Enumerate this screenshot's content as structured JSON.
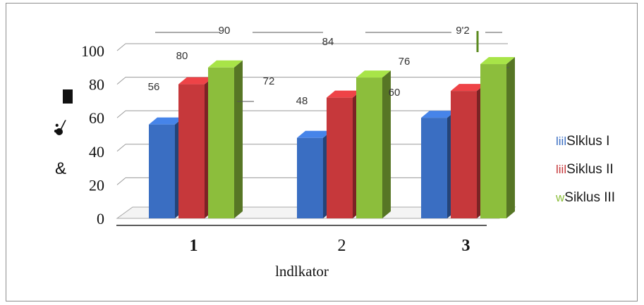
{
  "chart_data": {
    "type": "bar",
    "title": "",
    "xlabel": "lndlkator",
    "ylabel": "",
    "ylim": [
      0,
      100
    ],
    "y_ticks": [
      "0",
      "20",
      "40",
      "60",
      "80",
      "100"
    ],
    "categories": [
      "1",
      "2",
      "3"
    ],
    "series": [
      {
        "name": "Slklus I",
        "values": [
          56,
          48,
          60
        ],
        "color": "#3a6ec2"
      },
      {
        "name": "Siklus II",
        "values": [
          80,
          72,
          76
        ],
        "color": "#c6383b"
      },
      {
        "name": "Siklus III",
        "values": [
          90,
          84,
          92
        ],
        "color": "#8cbe3c"
      }
    ],
    "data_labels": [
      [
        "56",
        "48",
        "60"
      ],
      [
        "80",
        "72",
        "76"
      ],
      [
        "90",
        "84",
        "9'2"
      ]
    ],
    "legend_markers": [
      "liil",
      "liil",
      "w"
    ],
    "axis_marks": [
      ":/",
      "&"
    ],
    "grid": true,
    "legend_position": "right"
  }
}
